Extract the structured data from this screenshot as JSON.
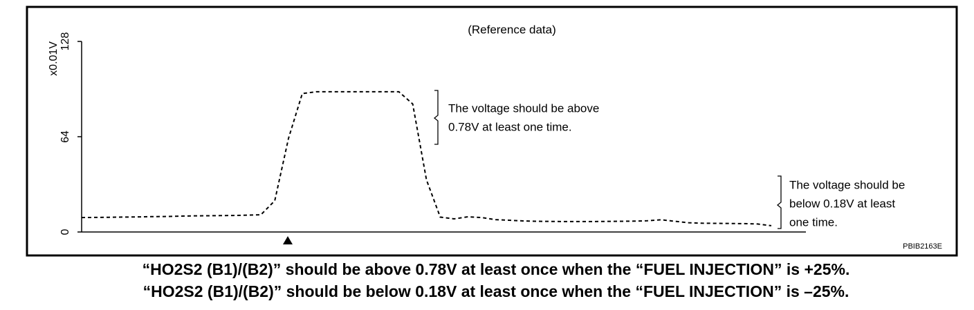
{
  "chart_data": {
    "type": "line",
    "title": "(Reference data)",
    "y_label": "x0.01V",
    "values": [
      9.7,
      9.8,
      9.9,
      10,
      10.1,
      10.3,
      10.4,
      10.6,
      10.8,
      10.9,
      11,
      11.1,
      11.3,
      11.6,
      21,
      63,
      93,
      94.2,
      94.2,
      94.2,
      94.2,
      94.2,
      94.2,
      94.2,
      86,
      35,
      10,
      8.8,
      10.2,
      9.7,
      8.3,
      7.9,
      7.4,
      7.2,
      7.1,
      7,
      7,
      7,
      7.1,
      7.2,
      7.3,
      7.5,
      8.2,
      7.2,
      6.2,
      5.9,
      5.8,
      5.7,
      5.6,
      5.4,
      4.2
    ],
    "color": "#000000",
    "dashed": true,
    "ylim": [
      0,
      128
    ],
    "yticks": [
      0,
      64,
      128
    ],
    "annotations": [
      [
        "The voltage should be above",
        "0.78V at least one time."
      ],
      [
        "The voltage should be",
        "below 0.18V at least",
        "one time."
      ]
    ],
    "figure_id": "PBIB2163E"
  },
  "captions": [
    "“HO2S2 (B1)/(B2)” should be above 0.78V at least once when the “FUEL INJECTION” is +25%.",
    "“HO2S2 (B1)/(B2)” should be below 0.18V at least once when the “FUEL INJECTION” is –25%."
  ]
}
